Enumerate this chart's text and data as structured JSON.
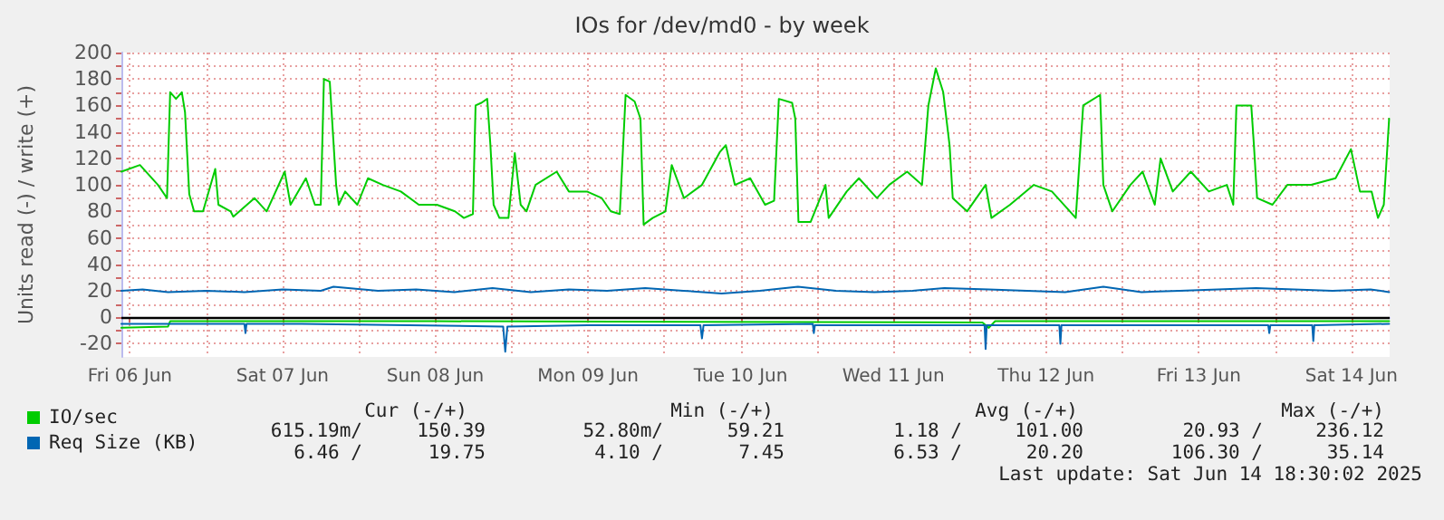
{
  "chart_data": {
    "type": "line",
    "title": "IOs for /dev/md0 - by week",
    "ylabel": "Units read (-) / write (+)",
    "xlim": [
      "2025-06-06T10:40",
      "2025-06-14T18:00"
    ],
    "ylim": [
      -30,
      200
    ],
    "xticks": [
      {
        "value": "2025-06-06T12:00",
        "label": "Fri 06 Jun"
      },
      {
        "value": "2025-06-07T00:00",
        "label": null
      },
      {
        "value": "2025-06-07T12:00",
        "label": "Sat 07 Jun"
      },
      {
        "value": "2025-06-08T00:00",
        "label": null
      },
      {
        "value": "2025-06-08T12:00",
        "label": "Sun 08 Jun"
      },
      {
        "value": "2025-06-09T00:00",
        "label": null
      },
      {
        "value": "2025-06-09T12:00",
        "label": "Mon 09 Jun"
      },
      {
        "value": "2025-06-10T00:00",
        "label": null
      },
      {
        "value": "2025-06-10T12:00",
        "label": "Tue 10 Jun"
      },
      {
        "value": "2025-06-11T00:00",
        "label": null
      },
      {
        "value": "2025-06-11T12:00",
        "label": "Wed 11 Jun"
      },
      {
        "value": "2025-06-12T00:00",
        "label": null
      },
      {
        "value": "2025-06-12T12:00",
        "label": "Thu 12 Jun"
      },
      {
        "value": "2025-06-13T00:00",
        "label": null
      },
      {
        "value": "2025-06-13T12:00",
        "label": "Fri 13 Jun"
      },
      {
        "value": "2025-06-14T00:00",
        "label": null
      },
      {
        "value": "2025-06-14T12:00",
        "label": "Sat 14 Jun"
      }
    ],
    "yticks": [
      -20,
      {
        "value": -10,
        "label": null
      },
      0,
      {
        "value": 10,
        "label": null
      },
      20,
      {
        "value": 30,
        "label": null
      },
      40,
      {
        "value": 50,
        "label": null
      },
      60,
      {
        "value": 70,
        "label": null
      },
      80,
      {
        "value": 90,
        "label": null
      },
      100,
      {
        "value": 110,
        "label": null
      },
      120,
      {
        "value": 130,
        "label": null
      },
      140,
      {
        "value": 150,
        "label": null
      },
      160,
      {
        "value": 170,
        "label": null
      },
      180,
      {
        "value": 190,
        "label": null
      },
      200
    ],
    "grid": true,
    "legend": "bottom left",
    "line_style": "solid",
    "ref_lines": [
      {
        "axis": "y",
        "value": 0,
        "label": null,
        "color": "#000000"
      }
    ],
    "series": [
      {
        "name": "IO/sec",
        "color": "#00cc00",
        "x": [
          "2025-06-06T10:40",
          "2025-06-06T13:35",
          "2025-06-06T16:25",
          "2025-06-06T17:50",
          "2025-06-06T18:20",
          "2025-06-06T19:15",
          "2025-06-06T20:10",
          "2025-06-06T20:40",
          "2025-06-06T21:20",
          "2025-06-06T22:05",
          "2025-06-06T23:30",
          "2025-06-07T01:25",
          "2025-06-07T01:55",
          "2025-06-07T03:50",
          "2025-06-07T04:15",
          "2025-06-07T07:35",
          "2025-06-07T09:30",
          "2025-06-07T12:20",
          "2025-06-07T13:15",
          "2025-06-07T15:40",
          "2025-06-07T17:05",
          "2025-06-07T18:00",
          "2025-06-07T18:30",
          "2025-06-07T19:25",
          "2025-06-07T20:25",
          "2025-06-07T20:50",
          "2025-06-07T21:50",
          "2025-06-07T23:45",
          "2025-06-08T01:25",
          "2025-06-08T03:45",
          "2025-06-08T06:35",
          "2025-06-08T09:25",
          "2025-06-08T12:15",
          "2025-06-08T15:05",
          "2025-06-08T16:30",
          "2025-06-08T17:55",
          "2025-06-08T18:20",
          "2025-06-08T19:15",
          "2025-06-08T20:10",
          "2025-06-08T20:40",
          "2025-06-08T21:10",
          "2025-06-08T22:05",
          "2025-06-08T23:30",
          "2025-06-09T00:30",
          "2025-06-09T01:25",
          "2025-06-09T02:20",
          "2025-06-09T03:45",
          "2025-06-09T07:05",
          "2025-06-09T09:00",
          "2025-06-09T11:50",
          "2025-06-09T14:10",
          "2025-06-09T15:35",
          "2025-06-09T17:00",
          "2025-06-09T17:55",
          "2025-06-09T19:20",
          "2025-06-09T20:15",
          "2025-06-09T20:45",
          "2025-06-09T22:10",
          "2025-06-10T00:10",
          "2025-06-10T01:10",
          "2025-06-10T03:05",
          "2025-06-10T05:55",
          "2025-06-10T08:45",
          "2025-06-10T09:40",
          "2025-06-10T11:05",
          "2025-06-10T13:30",
          "2025-06-10T15:50",
          "2025-06-10T17:15",
          "2025-06-10T18:00",
          "2025-06-10T20:05",
          "2025-06-10T20:35",
          "2025-06-10T21:05",
          "2025-06-10T23:00",
          "2025-06-11T01:20",
          "2025-06-11T01:50",
          "2025-06-11T04:40",
          "2025-06-11T06:35",
          "2025-06-11T09:25",
          "2025-06-11T11:20",
          "2025-06-11T14:10",
          "2025-06-11T16:30",
          "2025-06-11T17:30",
          "2025-06-11T18:40",
          "2025-06-11T19:50",
          "2025-06-11T20:50",
          "2025-06-11T21:20",
          "2025-06-11T23:35",
          "2025-06-12T02:30",
          "2025-06-12T03:25",
          "2025-06-12T06:20",
          "2025-06-12T10:05",
          "2025-06-12T12:55",
          "2025-06-12T15:45",
          "2025-06-12T16:40",
          "2025-06-12T17:50",
          "2025-06-12T20:30",
          "2025-06-12T21:00",
          "2025-06-12T22:25",
          "2025-06-13T01:15",
          "2025-06-13T03:10",
          "2025-06-13T05:05",
          "2025-06-13T06:00",
          "2025-06-13T07:55",
          "2025-06-13T10:45",
          "2025-06-13T13:35",
          "2025-06-13T16:25",
          "2025-06-13T17:25",
          "2025-06-13T17:55",
          "2025-06-13T20:15",
          "2025-06-13T20:40",
          "2025-06-13T21:10",
          "2025-06-13T23:35",
          "2025-06-14T01:55",
          "2025-06-14T05:40",
          "2025-06-14T09:30",
          "2025-06-14T11:55",
          "2025-06-14T13:20",
          "2025-06-14T15:10",
          "2025-06-14T16:10",
          "2025-06-14T17:05",
          "2025-06-14T17:55"
        ],
        "values": [
          110,
          115,
          100,
          90,
          170,
          165,
          170,
          155,
          93,
          80,
          80,
          112,
          85,
          80,
          76,
          90,
          80,
          110,
          85,
          105,
          85,
          85,
          180,
          178,
          100,
          85,
          95,
          85,
          105,
          100,
          95,
          85,
          85,
          80,
          75,
          78,
          160,
          162,
          165,
          130,
          85,
          75,
          75,
          124,
          85,
          80,
          100,
          110,
          95,
          95,
          90,
          80,
          78,
          168,
          163,
          150,
          70,
          75,
          80,
          115,
          90,
          100,
          125,
          130,
          100,
          105,
          85,
          88,
          165,
          162,
          150,
          72,
          72,
          100,
          75,
          95,
          105,
          90,
          100,
          110,
          100,
          160,
          188,
          170,
          130,
          90,
          80,
          100,
          75,
          85,
          100,
          95,
          80,
          75,
          160,
          168,
          100,
          80,
          100,
          110,
          85,
          120,
          95,
          110,
          95,
          100,
          85,
          160,
          160,
          130,
          90,
          85,
          100,
          100,
          105,
          127,
          95,
          95,
          75,
          85,
          150
        ]
      },
      {
        "color": "#00cc00",
        "x": [
          "2025-06-06T10:40",
          "2025-06-06T18:00",
          "2025-06-06T18:20",
          "2025-06-08T12:00",
          "2025-06-12T02:00",
          "2025-06-12T03:00",
          "2025-06-12T04:00",
          "2025-06-14T17:55"
        ],
        "values": [
          -8,
          -7,
          -3,
          -3,
          -4,
          -8,
          -3,
          -3
        ]
      },
      {
        "name": "Req Size (KB)",
        "color": "#0066b3",
        "x": [
          "2025-06-06T10:40",
          "2025-06-06T14:00",
          "2025-06-06T18:00",
          "2025-06-07T00:00",
          "2025-06-07T06:00",
          "2025-06-07T12:00",
          "2025-06-07T18:00",
          "2025-06-07T20:00",
          "2025-06-08T03:00",
          "2025-06-08T09:00",
          "2025-06-08T15:00",
          "2025-06-08T21:00",
          "2025-06-09T03:00",
          "2025-06-09T09:00",
          "2025-06-09T15:00",
          "2025-06-09T21:00",
          "2025-06-10T03:00",
          "2025-06-10T09:00",
          "2025-06-10T15:00",
          "2025-06-10T21:00",
          "2025-06-11T03:00",
          "2025-06-11T09:00",
          "2025-06-11T15:00",
          "2025-06-11T20:00",
          "2025-06-12T03:00",
          "2025-06-12T09:00",
          "2025-06-12T15:00",
          "2025-06-12T21:00",
          "2025-06-13T03:00",
          "2025-06-13T09:00",
          "2025-06-13T15:00",
          "2025-06-13T21:00",
          "2025-06-14T03:00",
          "2025-06-14T09:00",
          "2025-06-14T15:00",
          "2025-06-14T17:55"
        ],
        "values": [
          20,
          21,
          19,
          20,
          19,
          21,
          20,
          23,
          20,
          21,
          19,
          22,
          19,
          21,
          20,
          22,
          20,
          18,
          20,
          23,
          20,
          19,
          20,
          22,
          21,
          20,
          19,
          23,
          19,
          20,
          21,
          22,
          21,
          20,
          21,
          19
        ]
      },
      {
        "color": "#0066b3",
        "x": [
          "2025-06-06T10:40",
          "2025-06-07T06:00",
          "2025-06-07T06:10",
          "2025-06-07T06:20",
          "2025-06-07T15:00",
          "2025-06-08T22:40",
          "2025-06-08T23:00",
          "2025-06-08T23:20",
          "2025-06-09T12:00",
          "2025-06-10T05:40",
          "2025-06-10T05:55",
          "2025-06-10T06:10",
          "2025-06-10T23:20",
          "2025-06-10T23:30",
          "2025-06-10T23:40",
          "2025-06-12T02:20",
          "2025-06-12T02:30",
          "2025-06-12T02:40",
          "2025-06-12T14:05",
          "2025-06-12T14:15",
          "2025-06-12T14:25",
          "2025-06-13T22:55",
          "2025-06-13T23:05",
          "2025-06-13T23:15",
          "2025-06-14T05:50",
          "2025-06-14T06:00",
          "2025-06-14T06:10",
          "2025-06-14T17:55"
        ],
        "values": [
          -5,
          -5,
          -12,
          -5,
          -5,
          -7,
          -26,
          -7,
          -6,
          -6,
          -16,
          -6,
          -5,
          -12,
          -6,
          -6,
          -24,
          -6,
          -6,
          -20,
          -6,
          -6,
          -12,
          -6,
          -6,
          -18,
          -6,
          -5
        ]
      }
    ],
    "annotations": [
      "Cur (-/+)",
      "Min (-/+)",
      "Avg (-/+)",
      "Max (-/+)",
      "615.19m/",
      "150.39",
      "52.80m/",
      "59.21",
      "1.18 /",
      "101.00",
      "20.93 /",
      "236.12",
      "6.46 /",
      "19.75",
      "4.10 /",
      "7.45",
      "6.53 /",
      "20.20",
      "106.30 /",
      "35.14",
      "Last update: Sat Jun 14 18:30:02 2025"
    ]
  }
}
